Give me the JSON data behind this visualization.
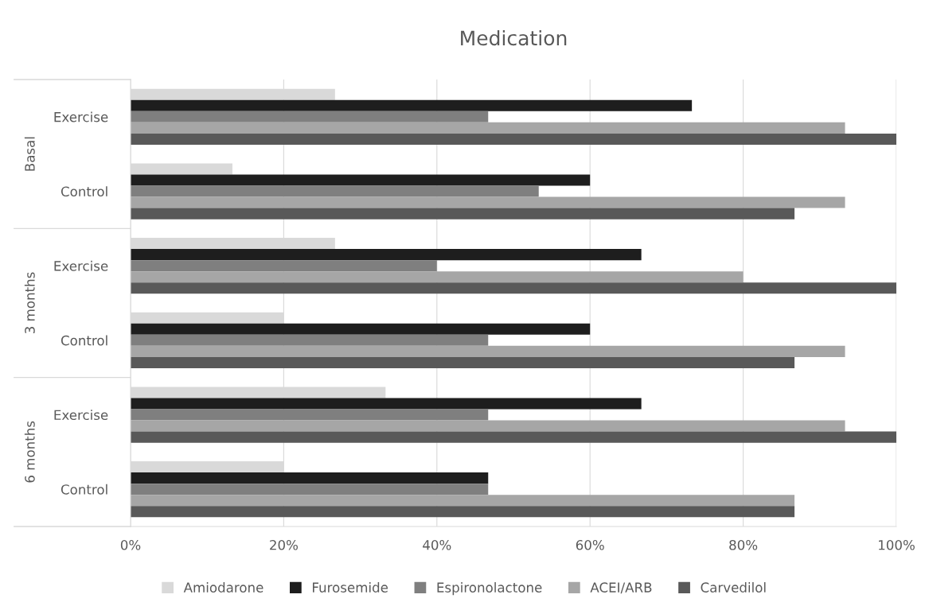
{
  "chart_data": {
    "type": "bar",
    "orientation": "horizontal",
    "title": "Medication",
    "categories": [
      "Exercise",
      "Control",
      "Exercise",
      "Control",
      "Exercise",
      "Control"
    ],
    "annotations": [
      "Basal",
      "3 months",
      "6 months"
    ],
    "series": [
      {
        "name": "Amiodarone",
        "color": "#d9d9d9",
        "values": [
          26.7,
          13.3,
          26.7,
          20,
          33.3,
          20
        ]
      },
      {
        "name": "Furosemide",
        "color": "#1e1e1e",
        "values": [
          73.3,
          60,
          66.7,
          60,
          66.7,
          46.7
        ]
      },
      {
        "name": "Espironolactone",
        "color": "#7f7f7f",
        "values": [
          46.7,
          53.3,
          40,
          46.7,
          46.7,
          46.7
        ]
      },
      {
        "name": "ACEI/ARB",
        "color": "#a6a6a6",
        "values": [
          93.3,
          93.3,
          80,
          93.3,
          93.3,
          86.7
        ]
      },
      {
        "name": "Carvedilol",
        "color": "#595959",
        "values": [
          100,
          86.7,
          100,
          86.7,
          100,
          86.7
        ]
      }
    ],
    "xlim": [
      0,
      100
    ],
    "xticks": [
      {
        "value": 0,
        "label": "0%"
      },
      {
        "value": 20,
        "label": "20%"
      },
      {
        "value": 40,
        "label": "40%"
      },
      {
        "value": 60,
        "label": "60%"
      },
      {
        "value": 80,
        "label": "80%"
      },
      {
        "value": 100,
        "label": "100%"
      }
    ],
    "grid": "x",
    "legend": "bottom"
  }
}
